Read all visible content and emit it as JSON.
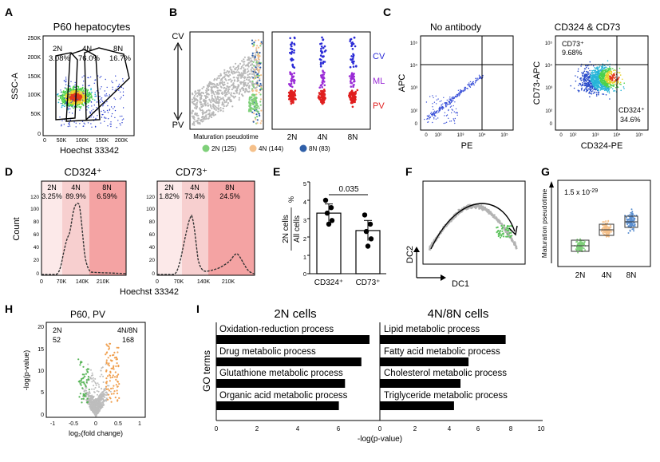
{
  "panel_letters": [
    "A",
    "B",
    "C",
    "D",
    "E",
    "F",
    "G",
    "H",
    "I"
  ],
  "A": {
    "title": "P60 hepatocytes",
    "ylabel": "SSC-A",
    "xlabel": "Hoechst 33342",
    "yticks": [
      "250K",
      "200K",
      "150K",
      "100K",
      "50K",
      "0"
    ],
    "xticks": [
      "0",
      "50K",
      "100K",
      "150K",
      "200K"
    ],
    "gates": [
      {
        "name": "2N",
        "pct": "3.08%"
      },
      {
        "name": "4N",
        "pct": "76.0%"
      },
      {
        "name": "8N",
        "pct": "16.7%"
      }
    ]
  },
  "B": {
    "axis_top": "CV",
    "axis_bottom": "PV",
    "xlabel": "Maturation pseudotime",
    "strip_xticks": [
      "2N",
      "4N",
      "8N"
    ],
    "zone_labels": [
      "CV",
      "ML",
      "PV"
    ],
    "legend": [
      "2N (125)",
      "4N (144)",
      "8N (83)"
    ],
    "colors": {
      "2N": "#7fd07a",
      "4N": "#f5c08a",
      "8N": "#2f5fa8",
      "CV": "#2b2bd6",
      "ML": "#9a2bd6",
      "PV": "#e01f1f",
      "grey": "#b5b5b5"
    }
  },
  "C": {
    "left_title": "No antibody",
    "right_title": "CD324 & CD73",
    "left_ylabel": "APC",
    "left_xlabel": "PE",
    "right_ylabel": "CD73-APC",
    "right_xlabel": "CD324-PE",
    "yticks": [
      "10⁵",
      "10⁴",
      "10³",
      "10²",
      "0"
    ],
    "xticks": [
      "0",
      "10²",
      "10³",
      "10⁴",
      "10⁵"
    ],
    "gate_q1_label": "CD73⁺",
    "gate_q1_pct": "9.68%",
    "gate_q4_label": "CD324⁺",
    "gate_q4_pct": "34.6%"
  },
  "D": {
    "ylabel": "Count",
    "xlabel": "Hoechst 33342",
    "yticks": [
      "120",
      "100",
      "80",
      "60",
      "40",
      "20",
      "0"
    ],
    "xticks": [
      "0",
      "70K",
      "140K",
      "210K"
    ],
    "hists": [
      {
        "title": "CD324⁺",
        "gates": [
          {
            "name": "2N",
            "pct": "3.25%"
          },
          {
            "name": "4N",
            "pct": "89.9%"
          },
          {
            "name": "8N",
            "pct": "6.59%"
          }
        ]
      },
      {
        "title": "CD73⁺",
        "gates": [
          {
            "name": "2N",
            "pct": "1.82%"
          },
          {
            "name": "4N",
            "pct": "73.4%"
          },
          {
            "name": "8N",
            "pct": "24.5%"
          }
        ]
      }
    ]
  },
  "E": {
    "ylabel_top": "2N cells",
    "ylabel_bottom": "All cells",
    "ylabel_unit": "%",
    "pvalue": "0.035",
    "yticks": [
      "5",
      "4",
      "3",
      "2",
      "1",
      "0"
    ],
    "chart_data": {
      "type": "bar",
      "categories": [
        "CD324⁺",
        "CD73⁺"
      ],
      "values": [
        3.3,
        2.35
      ],
      "errors": [
        0.5,
        0.55
      ],
      "points": [
        [
          4.0,
          3.6,
          3.3,
          2.9,
          2.7
        ],
        [
          3.2,
          2.7,
          2.3,
          1.9,
          1.5
        ]
      ],
      "ylim": [
        0,
        5
      ]
    }
  },
  "F": {
    "xlabel": "DC1",
    "ylabel": "DC2"
  },
  "G": {
    "ylabel": "Maturation pseudotime",
    "pvalue_base": "1.5 x 10",
    "pvalue_exp": "-29",
    "categories": [
      "2N",
      "4N",
      "8N"
    ],
    "colors": [
      "#7fd07a",
      "#f5c08a",
      "#5b8fd0"
    ]
  },
  "H": {
    "title": "P60, PV",
    "ylabel": "-log(p-value)",
    "xlabel": "log₂(fold change)",
    "yticks": [
      "20",
      "15",
      "10",
      "5",
      "0"
    ],
    "xticks": [
      "-1",
      "-0.5",
      "0",
      "0.5",
      "1"
    ],
    "left_label": "2N",
    "left_count": "52",
    "right_label": "4N/8N",
    "right_count": "168"
  },
  "I": {
    "ylabel": "GO terms",
    "xlabel": "-log(p-value)",
    "xticks": [
      "0",
      "2",
      "4",
      "6",
      "8",
      "10"
    ],
    "chart_data": [
      {
        "type": "bar",
        "title": "2N cells",
        "categories": [
          "Oxidation-reduction process",
          "Drug metabolic process",
          "Glutathione metabolic process",
          "Organic acid metabolic process"
        ],
        "values": [
          7.5,
          7.1,
          6.3,
          6.0
        ],
        "xlim": [
          0,
          8
        ]
      },
      {
        "type": "bar",
        "title": "4N/8N cells",
        "categories": [
          "Lipid metabolic process",
          "Fatty acid metabolic process",
          "Cholesterol metabolic process",
          "Triglyceride metabolic process"
        ],
        "values": [
          7.8,
          5.5,
          5.0,
          4.6
        ],
        "xlim": [
          0,
          10
        ]
      }
    ]
  }
}
